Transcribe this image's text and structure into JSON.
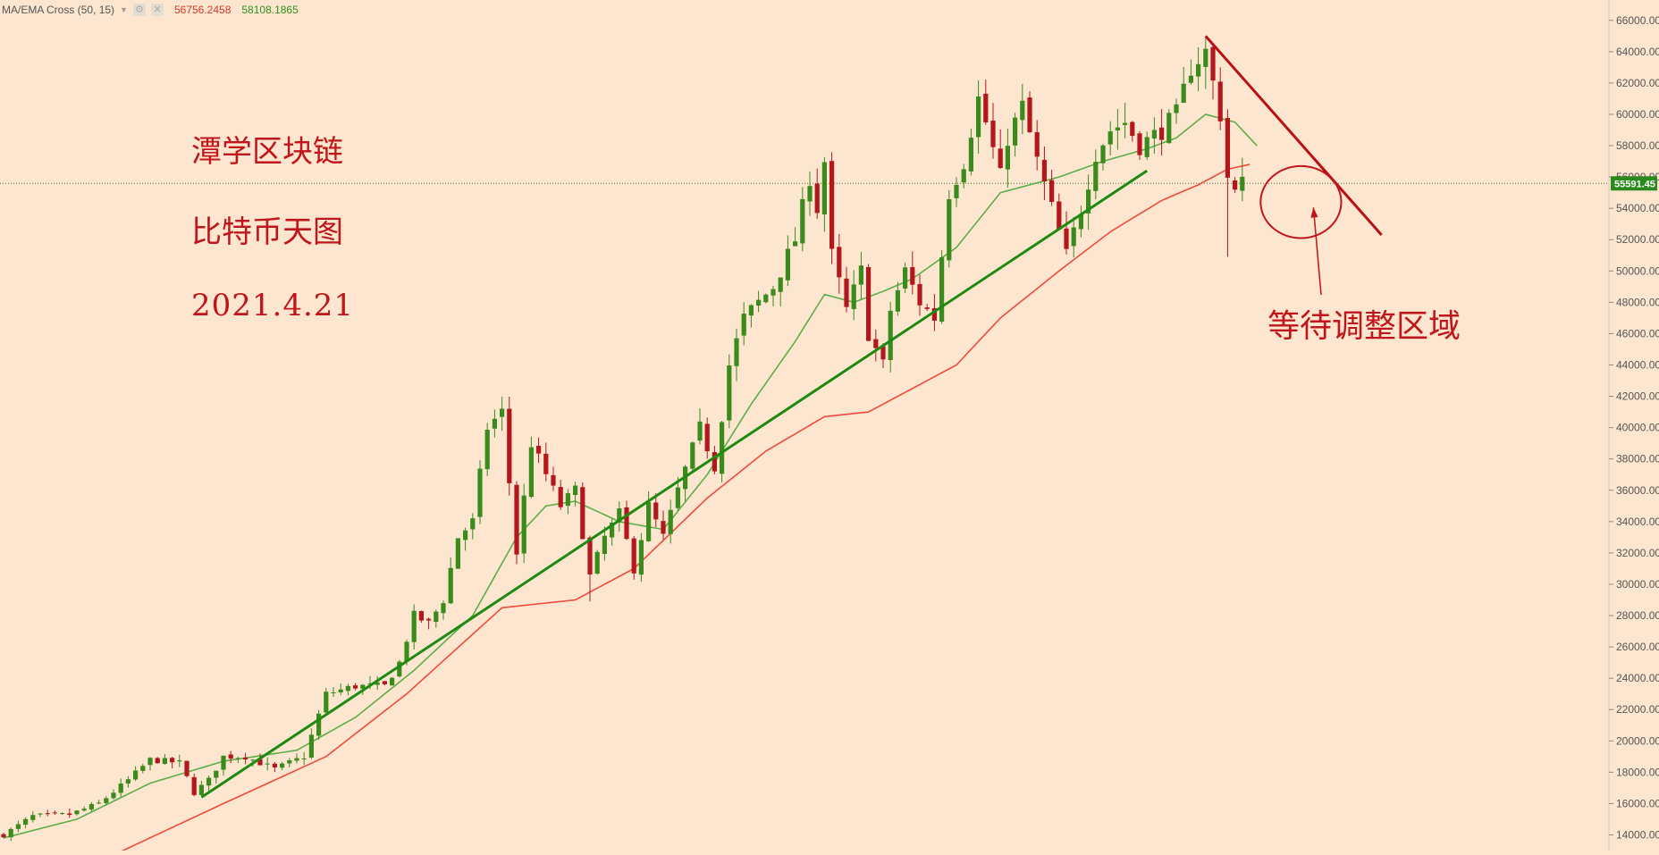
{
  "indicator": {
    "name": "MA/EMA Cross (50, 15)",
    "value_1": "56756.2458",
    "value_2": "58108.1865",
    "color_1": "#d23a2a",
    "color_2": "#2f8f1f"
  },
  "overlay": {
    "line1": "潭学区块链",
    "line2": "比特币天图",
    "line3": "2021.4.21",
    "annotation": "等待调整区域",
    "color": "#c0151a"
  },
  "price_tag": {
    "value": "55591.45",
    "price": 55591.45,
    "color": "#2b8a1e"
  },
  "colors": {
    "background": "#fce6cf",
    "candle_up": "#3a8a1c",
    "candle_down": "#b3161b",
    "ema_fast": "#5cae4a",
    "ma_slow": "#f04a3c",
    "trend_support": "#1e8a12",
    "trend_resistance": "#b81015"
  },
  "chart_data": {
    "type": "candlestick",
    "title": "",
    "ylim": [
      13000,
      67300
    ],
    "y_ticks": [
      "14000.00",
      "16000.00",
      "18000.00",
      "20000.00",
      "22000.00",
      "24000.00",
      "26000.00",
      "28000.00",
      "30000.00",
      "32000.00",
      "34000.00",
      "36000.00",
      "38000.00",
      "40000.00",
      "42000.00",
      "44000.00",
      "46000.00",
      "48000.00",
      "50000.00",
      "52000.00",
      "54000.00",
      "56000.00",
      "58000.00",
      "60000.00",
      "62000.00",
      "64000.00",
      "66000.00"
    ],
    "waypoints": [
      [
        0,
        14000
      ],
      [
        4,
        15200
      ],
      [
        9,
        15300
      ],
      [
        13,
        16000
      ],
      [
        17,
        17500
      ],
      [
        20,
        18800
      ],
      [
        24,
        18600
      ],
      [
        26,
        16700
      ],
      [
        28,
        17500
      ],
      [
        30,
        19000
      ],
      [
        33,
        19000
      ],
      [
        37,
        18200
      ],
      [
        41,
        19000
      ],
      [
        44,
        23000
      ],
      [
        48,
        23500
      ],
      [
        52,
        23500
      ],
      [
        54,
        25000
      ],
      [
        56,
        28000
      ],
      [
        58,
        27500
      ],
      [
        60,
        29000
      ],
      [
        62,
        33000
      ],
      [
        64,
        34000
      ],
      [
        66,
        40000
      ],
      [
        68,
        41000
      ],
      [
        70,
        32000
      ],
      [
        72,
        39000
      ],
      [
        74,
        37000
      ],
      [
        76,
        35000
      ],
      [
        78,
        36000
      ],
      [
        80,
        30500
      ],
      [
        82,
        33000
      ],
      [
        84,
        34500
      ],
      [
        86,
        31000
      ],
      [
        88,
        35000
      ],
      [
        90,
        33000
      ],
      [
        92,
        36000
      ],
      [
        95,
        40000
      ],
      [
        97,
        37500
      ],
      [
        99,
        44000
      ],
      [
        101,
        47000
      ],
      [
        103,
        48000
      ],
      [
        105,
        49000
      ],
      [
        107,
        51000
      ],
      [
        108,
        52000
      ],
      [
        110,
        56000
      ],
      [
        111,
        54000
      ],
      [
        112,
        57000
      ],
      [
        113,
        51000
      ],
      [
        115,
        47500
      ],
      [
        117,
        50000
      ],
      [
        118,
        46000
      ],
      [
        120,
        44000
      ],
      [
        121,
        47500
      ],
      [
        123,
        50000
      ],
      [
        125,
        48000
      ],
      [
        127,
        47000
      ],
      [
        129,
        55000
      ],
      [
        131,
        57000
      ],
      [
        133,
        61000
      ],
      [
        134,
        59500
      ],
      [
        136,
        56000
      ],
      [
        137,
        58500
      ],
      [
        139,
        60500
      ],
      [
        141,
        57000
      ],
      [
        143,
        54000
      ],
      [
        145,
        51000
      ],
      [
        147,
        54000
      ],
      [
        149,
        57500
      ],
      [
        151,
        59000
      ],
      [
        153,
        59500
      ],
      [
        155,
        58000
      ],
      [
        158,
        59000
      ],
      [
        160,
        60000
      ],
      [
        162,
        63000
      ],
      [
        164,
        64000
      ],
      [
        165,
        62000
      ],
      [
        166,
        60000
      ],
      [
        167,
        56000
      ],
      [
        168,
        55000
      ],
      [
        169,
        55600
      ]
    ],
    "ma_slow": [
      [
        0,
        10800
      ],
      [
        14,
        12500
      ],
      [
        30,
        16000
      ],
      [
        44,
        19000
      ],
      [
        55,
        23000
      ],
      [
        68,
        28500
      ],
      [
        78,
        29000
      ],
      [
        86,
        31000
      ],
      [
        96,
        35500
      ],
      [
        104,
        38500
      ],
      [
        112,
        40700
      ],
      [
        118,
        41000
      ],
      [
        124,
        42500
      ],
      [
        130,
        44000
      ],
      [
        136,
        47000
      ],
      [
        144,
        50000
      ],
      [
        151,
        52500
      ],
      [
        158,
        54500
      ],
      [
        163,
        55500
      ],
      [
        167,
        56500
      ],
      [
        170,
        56800
      ]
    ],
    "ema_fast": [
      [
        0,
        13800
      ],
      [
        10,
        15000
      ],
      [
        20,
        17300
      ],
      [
        30,
        18700
      ],
      [
        40,
        19400
      ],
      [
        48,
        21500
      ],
      [
        56,
        24500
      ],
      [
        64,
        28000
      ],
      [
        70,
        33000
      ],
      [
        74,
        35000
      ],
      [
        78,
        35300
      ],
      [
        84,
        34000
      ],
      [
        90,
        33500
      ],
      [
        96,
        37000
      ],
      [
        102,
        41500
      ],
      [
        108,
        45500
      ],
      [
        112,
        48500
      ],
      [
        116,
        48000
      ],
      [
        120,
        48700
      ],
      [
        124,
        49500
      ],
      [
        130,
        51500
      ],
      [
        136,
        55000
      ],
      [
        144,
        56000
      ],
      [
        150,
        57000
      ],
      [
        156,
        57800
      ],
      [
        160,
        58500
      ],
      [
        164,
        60000
      ],
      [
        168,
        59500
      ],
      [
        171,
        58000
      ]
    ],
    "support_line": [
      [
        27,
        16400
      ],
      [
        156,
        56400
      ]
    ],
    "resistance_line": [
      [
        164,
        65000
      ],
      [
        188,
        52300
      ]
    ],
    "circle": {
      "center": [
        177,
        54400
      ],
      "rx_bars": 5.5,
      "ry_price": 2300
    }
  }
}
